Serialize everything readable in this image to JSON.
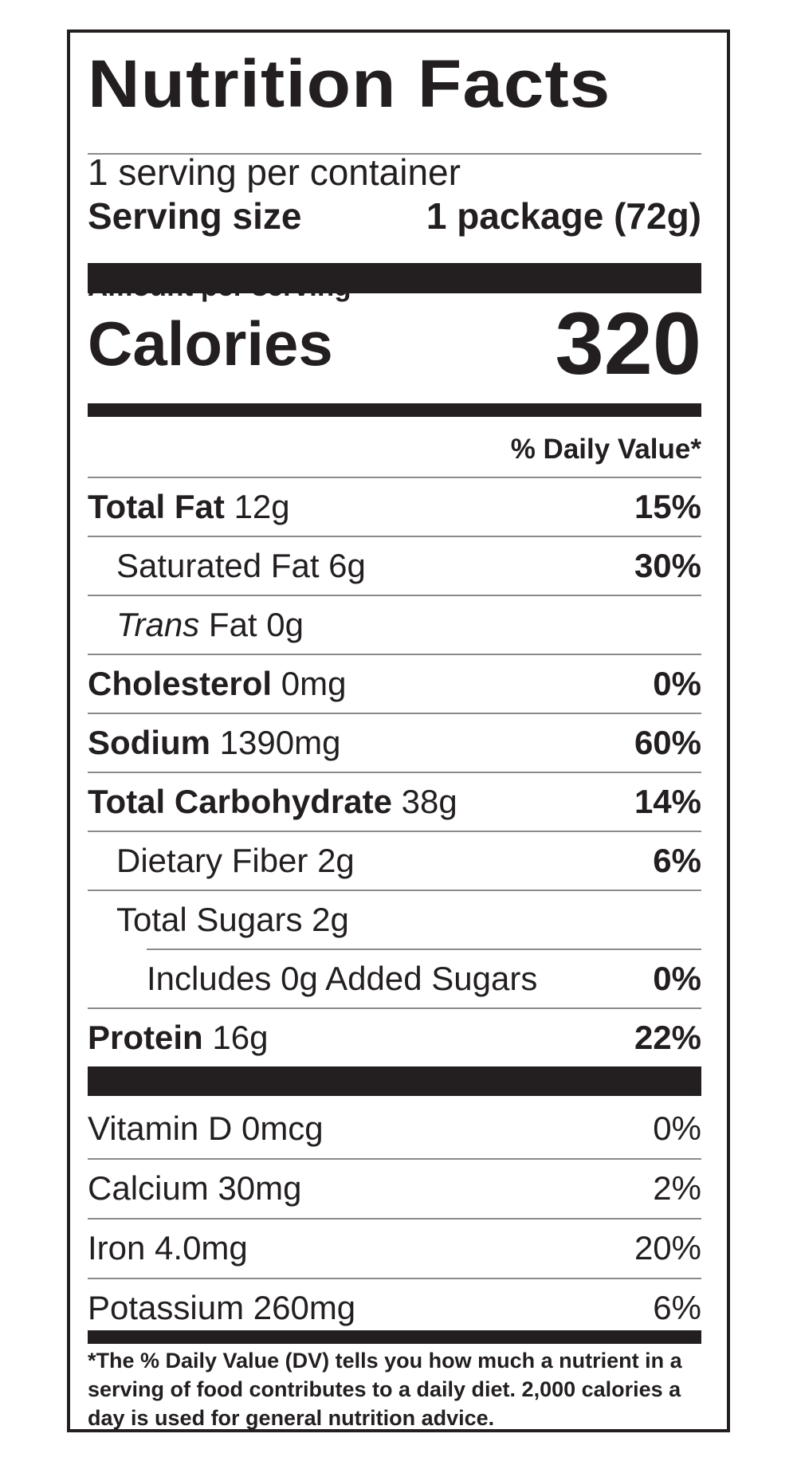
{
  "title": "Nutrition Facts",
  "servings_per_container": "1 serving per container",
  "serving_size": {
    "label": "Serving size",
    "value": "1 package (72g)"
  },
  "amount_per_serving": "Amount per serving",
  "calories": {
    "label": "Calories",
    "value": "320"
  },
  "daily_value_header": "% Daily Value*",
  "nutrients": [
    {
      "name": "Total Fat",
      "amount": "12g",
      "dv": "15%"
    },
    {
      "name": "Saturated Fat",
      "amount": "6g",
      "dv": "30%"
    },
    {
      "name": "Trans",
      "name_suffix": "Fat",
      "amount": "0g",
      "dv": ""
    },
    {
      "name": "Cholesterol",
      "amount": "0mg",
      "dv": "0%"
    },
    {
      "name": "Sodium",
      "amount": "1390mg",
      "dv": "60%"
    },
    {
      "name": "Total Carbohydrate",
      "amount": "38g",
      "dv": "14%"
    },
    {
      "name": "Dietary Fiber",
      "amount": "2g",
      "dv": "6%"
    },
    {
      "name": "Total Sugars",
      "amount": "2g",
      "dv": ""
    },
    {
      "name": "Includes 0g Added Sugars",
      "amount": "",
      "dv": "0%"
    },
    {
      "name": "Protein",
      "amount": "16g",
      "dv": "22%"
    }
  ],
  "vitamins": [
    {
      "text": "Vitamin D 0mcg",
      "dv": "0%"
    },
    {
      "text": "Calcium 30mg",
      "dv": "2%"
    },
    {
      "text": "Iron 4.0mg",
      "dv": "20%"
    },
    {
      "text": "Potassium 260mg",
      "dv": "6%"
    }
  ],
  "footnote": "*The % Daily Value (DV) tells you how much a nutrient in a serving of food contributes to a daily diet. 2,000 calories a day is used for general nutrition advice."
}
